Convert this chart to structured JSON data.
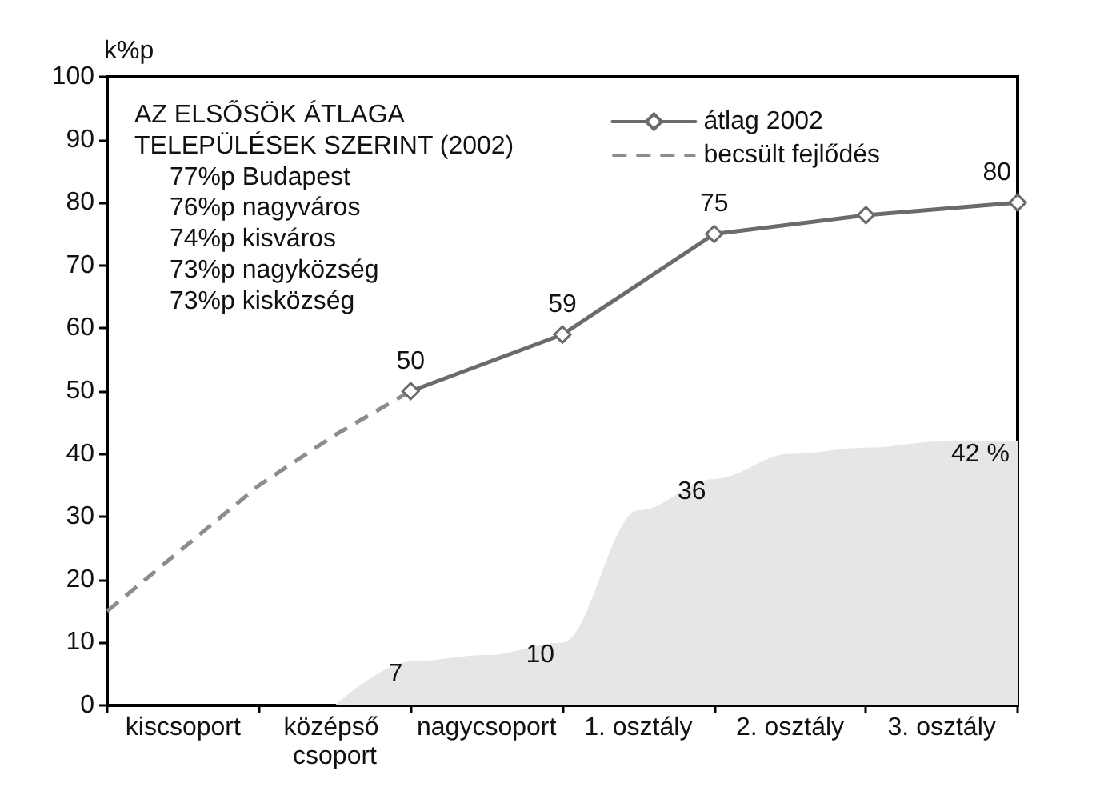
{
  "chart_data": {
    "type": "line",
    "ylabel": "k%p",
    "annotations": [
      "AZ ELSŐSÖK ÁTLAGA",
      "TELEPÜLÉSEK SZERINT (2002)",
      "77%p Budapest",
      "76%p nagyváros",
      "74%p kisváros",
      "73%p nagyközség",
      "73%p kisközség"
    ],
    "categories": [
      null,
      "kiscsoport",
      null,
      "középső csoport",
      null,
      "nagycsoport",
      null,
      "1. osztály",
      null,
      "2. osztály",
      null,
      "3. osztály",
      null
    ],
    "ylim": [
      0,
      100
    ],
    "yticks": [
      0,
      10,
      20,
      30,
      40,
      50,
      60,
      70,
      80,
      90,
      100
    ],
    "grid": false,
    "legend": "top right",
    "series": [
      {
        "type": "area",
        "color": "#e6e6e6",
        "values": [
          null,
          null,
          null,
          0,
          7,
          8,
          10,
          31,
          36,
          40,
          41,
          42,
          42
        ],
        "value_labels": [
          null,
          null,
          null,
          null,
          "7",
          null,
          "10",
          null,
          "36",
          null,
          null,
          null,
          "42 %"
        ]
      },
      {
        "name": "átlag 2002",
        "color": "#6b6b6b",
        "values": [
          null,
          null,
          null,
          null,
          50,
          null,
          59,
          null,
          75,
          null,
          78,
          null,
          80
        ],
        "marker": "diamond",
        "line_style": "solid",
        "value_labels": [
          null,
          null,
          null,
          null,
          "50",
          null,
          "59",
          null,
          "75",
          null,
          null,
          null,
          "80"
        ]
      },
      {
        "name": "becsült fejlődés",
        "color": "#8c8c8c",
        "values": [
          15,
          25,
          35,
          43,
          50,
          null,
          null,
          null,
          null,
          null,
          null,
          null,
          null
        ],
        "line_style": "dashed"
      }
    ]
  }
}
